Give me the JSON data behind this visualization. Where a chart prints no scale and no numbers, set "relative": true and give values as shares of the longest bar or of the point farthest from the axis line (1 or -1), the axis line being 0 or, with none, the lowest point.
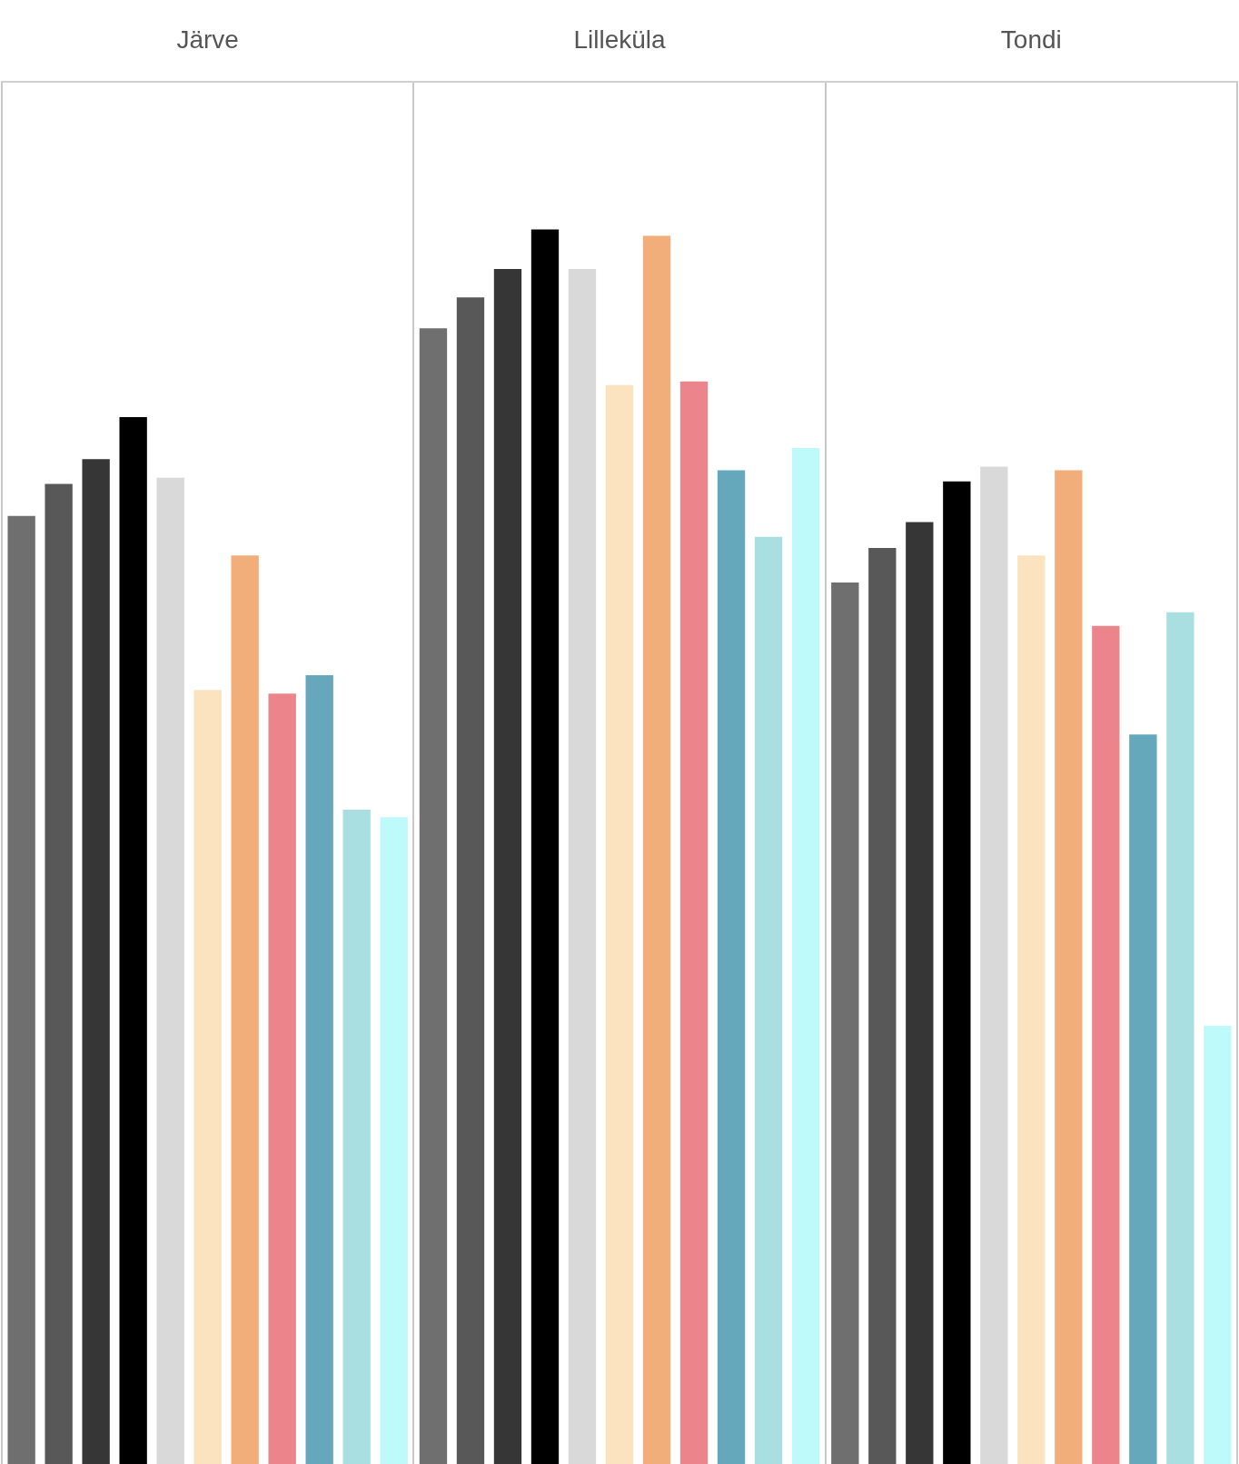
{
  "chart_data": {
    "type": "bar",
    "relative": true,
    "legend": false,
    "categories": [
      "Järve",
      "Lilleküla",
      "Tondi"
    ],
    "series": [
      {
        "color": "#6f6f6f",
        "values": [
          0.768,
          0.92,
          0.714
        ]
      },
      {
        "color": "#585858",
        "values": [
          0.794,
          0.945,
          0.742
        ]
      },
      {
        "color": "#363636",
        "values": [
          0.814,
          0.968,
          0.763
        ]
      },
      {
        "color": "#000000",
        "values": [
          0.848,
          1,
          0.796
        ]
      },
      {
        "color": "#d9d9d9",
        "values": [
          0.799,
          0.968,
          0.808
        ]
      },
      {
        "color": "#fce3bf",
        "values": [
          0.627,
          0.874,
          0.736
        ]
      },
      {
        "color": "#f2ae7a",
        "values": [
          0.736,
          0.995,
          0.805
        ]
      },
      {
        "color": "#ec848c",
        "values": [
          0.624,
          0.877,
          0.679
        ]
      },
      {
        "color": "#65a8bb",
        "values": [
          0.639,
          0.805,
          0.591
        ]
      },
      {
        "color": "#a9dfe0",
        "values": [
          0.53,
          0.751,
          0.69
        ]
      },
      {
        "color": "#bffafa",
        "values": [
          0.524,
          0.823,
          0.355
        ]
      }
    ]
  }
}
